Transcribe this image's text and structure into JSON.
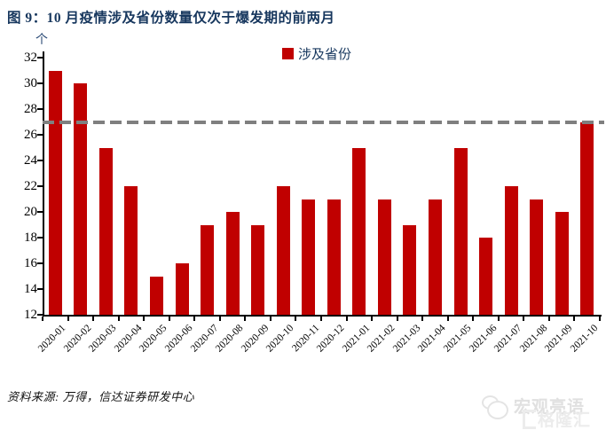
{
  "title": "图 9：10 月疫情涉及省份数量仅次于爆发期的前两月",
  "unit_label": "个",
  "legend": {
    "label": "涉及省份",
    "swatch_color": "#C00000"
  },
  "source_note": "资料来源: 万得，信达证券研发中心",
  "watermark": {
    "brand": "宏观亮语",
    "overlay_brand": "格隆汇"
  },
  "colors": {
    "bar": "#C00000",
    "reference_line": "#7F7F7F",
    "axis": "#000000",
    "title_text": "#17375E"
  },
  "chart_data": {
    "type": "bar",
    "title": "图 9：10 月疫情涉及省份数量仅次于爆发期的前两月",
    "xlabel": "",
    "ylabel": "个",
    "legend_entries": [
      "涉及省份"
    ],
    "legend_position": "top",
    "grid": false,
    "categories": [
      "2020-01",
      "2020-02",
      "2020-03",
      "2020-04",
      "2020-05",
      "2020-06",
      "2020-07",
      "2020-08",
      "2020-09",
      "2020-10",
      "2020-11",
      "2020-12",
      "2021-01",
      "2021-02",
      "2021-03",
      "2021-04",
      "2021-05",
      "2021-06",
      "2021-07",
      "2021-08",
      "2021-09",
      "2021-10"
    ],
    "values": [
      31,
      30,
      25,
      22,
      15,
      16,
      19,
      20,
      19,
      22,
      21,
      21,
      25,
      21,
      19,
      21,
      25,
      18,
      22,
      21,
      20,
      27
    ],
    "ylim": [
      12,
      32
    ],
    "ytick_step": 2,
    "yticks": [
      12,
      14,
      16,
      18,
      20,
      22,
      24,
      26,
      28,
      30,
      32
    ],
    "reference_line": {
      "value": 27,
      "style": "dashed",
      "color": "#7F7F7F"
    }
  }
}
